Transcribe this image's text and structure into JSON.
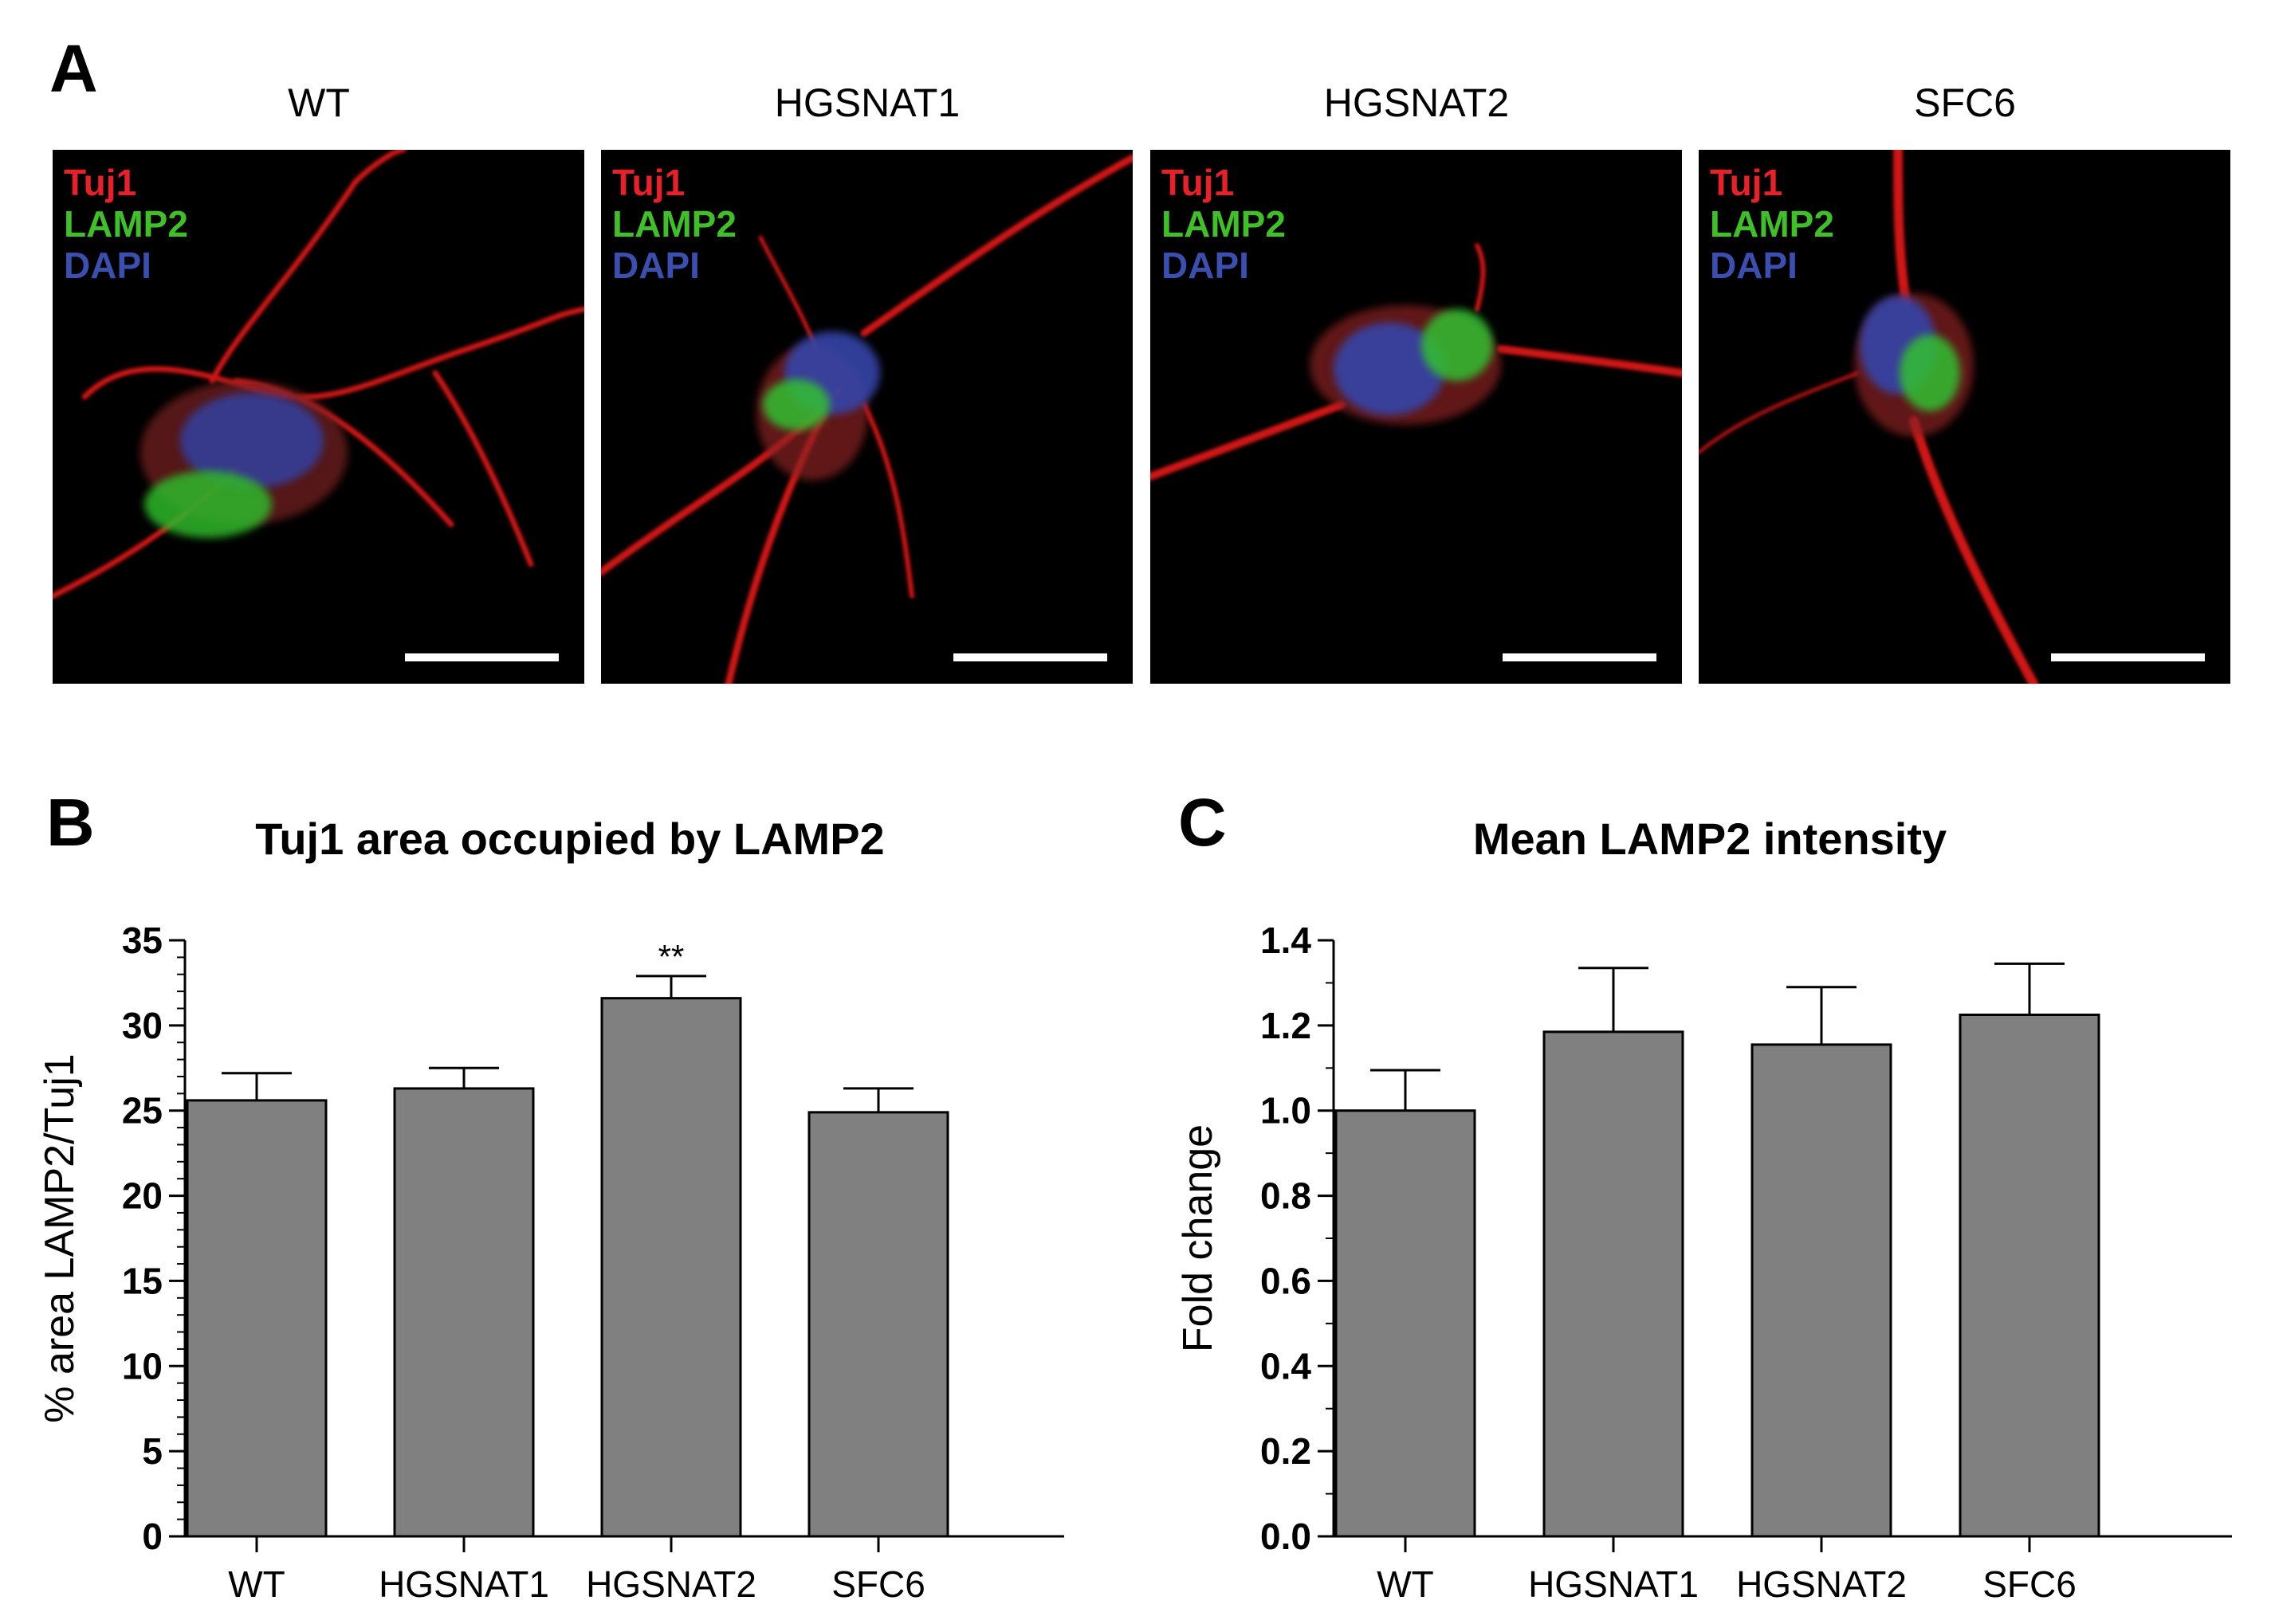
{
  "panel_a": {
    "letter": "A",
    "images": [
      {
        "condition": "WT",
        "stains": [
          "Tuj1",
          "LAMP2",
          "DAPI"
        ]
      },
      {
        "condition": "HGSNAT1",
        "stains": [
          "Tuj1",
          "LAMP2",
          "DAPI"
        ]
      },
      {
        "condition": "HGSNAT2",
        "stains": [
          "Tuj1",
          "LAMP2",
          "DAPI"
        ]
      },
      {
        "condition": "SFC6",
        "stains": [
          "Tuj1",
          "LAMP2",
          "DAPI"
        ]
      }
    ],
    "stain_colors": {
      "Tuj1": "#e8202a",
      "LAMP2": "#3fbf28",
      "DAPI": "#3a4fb0"
    }
  },
  "chart_data": [
    {
      "panel": "B",
      "type": "bar",
      "title": "Tuj1 area occupied by LAMP2",
      "xlabel": "",
      "ylabel": "% area LAMP2/Tuj1",
      "categories": [
        "WT",
        "HGSNAT1",
        "HGSNAT2",
        "SFC6"
      ],
      "values": [
        25.6,
        26.3,
        31.6,
        24.9
      ],
      "errors": [
        1.6,
        1.2,
        1.3,
        1.4
      ],
      "annotations": [
        "",
        "",
        "**",
        ""
      ],
      "ylim": [
        0,
        35
      ],
      "yticks": [
        0,
        5,
        10,
        15,
        20,
        25,
        30,
        35
      ],
      "ytick_labels": [
        "0",
        "5",
        "10",
        "15",
        "20",
        "25",
        "30",
        "35"
      ],
      "minor_ticks_per_major": 4,
      "bar_color": "#808080",
      "grid": false
    },
    {
      "panel": "C",
      "type": "bar",
      "title": "Mean LAMP2 intensity",
      "xlabel": "",
      "ylabel": "Fold change",
      "categories": [
        "WT",
        "HGSNAT1",
        "HGSNAT2",
        "SFC6"
      ],
      "values": [
        1.0,
        1.185,
        1.155,
        1.225
      ],
      "errors": [
        0.095,
        0.15,
        0.135,
        0.12
      ],
      "annotations": [
        "",
        "",
        "",
        ""
      ],
      "ylim": [
        0,
        1.4
      ],
      "yticks": [
        0,
        0.2,
        0.4,
        0.6,
        0.8,
        1.0,
        1.2,
        1.4
      ],
      "ytick_labels": [
        "0.0",
        "0.2",
        "0.4",
        "0.6",
        "0.8",
        "1.0",
        "1.2",
        "1.4"
      ],
      "minor_ticks_per_major": 1,
      "bar_color": "#808080",
      "grid": false
    }
  ]
}
